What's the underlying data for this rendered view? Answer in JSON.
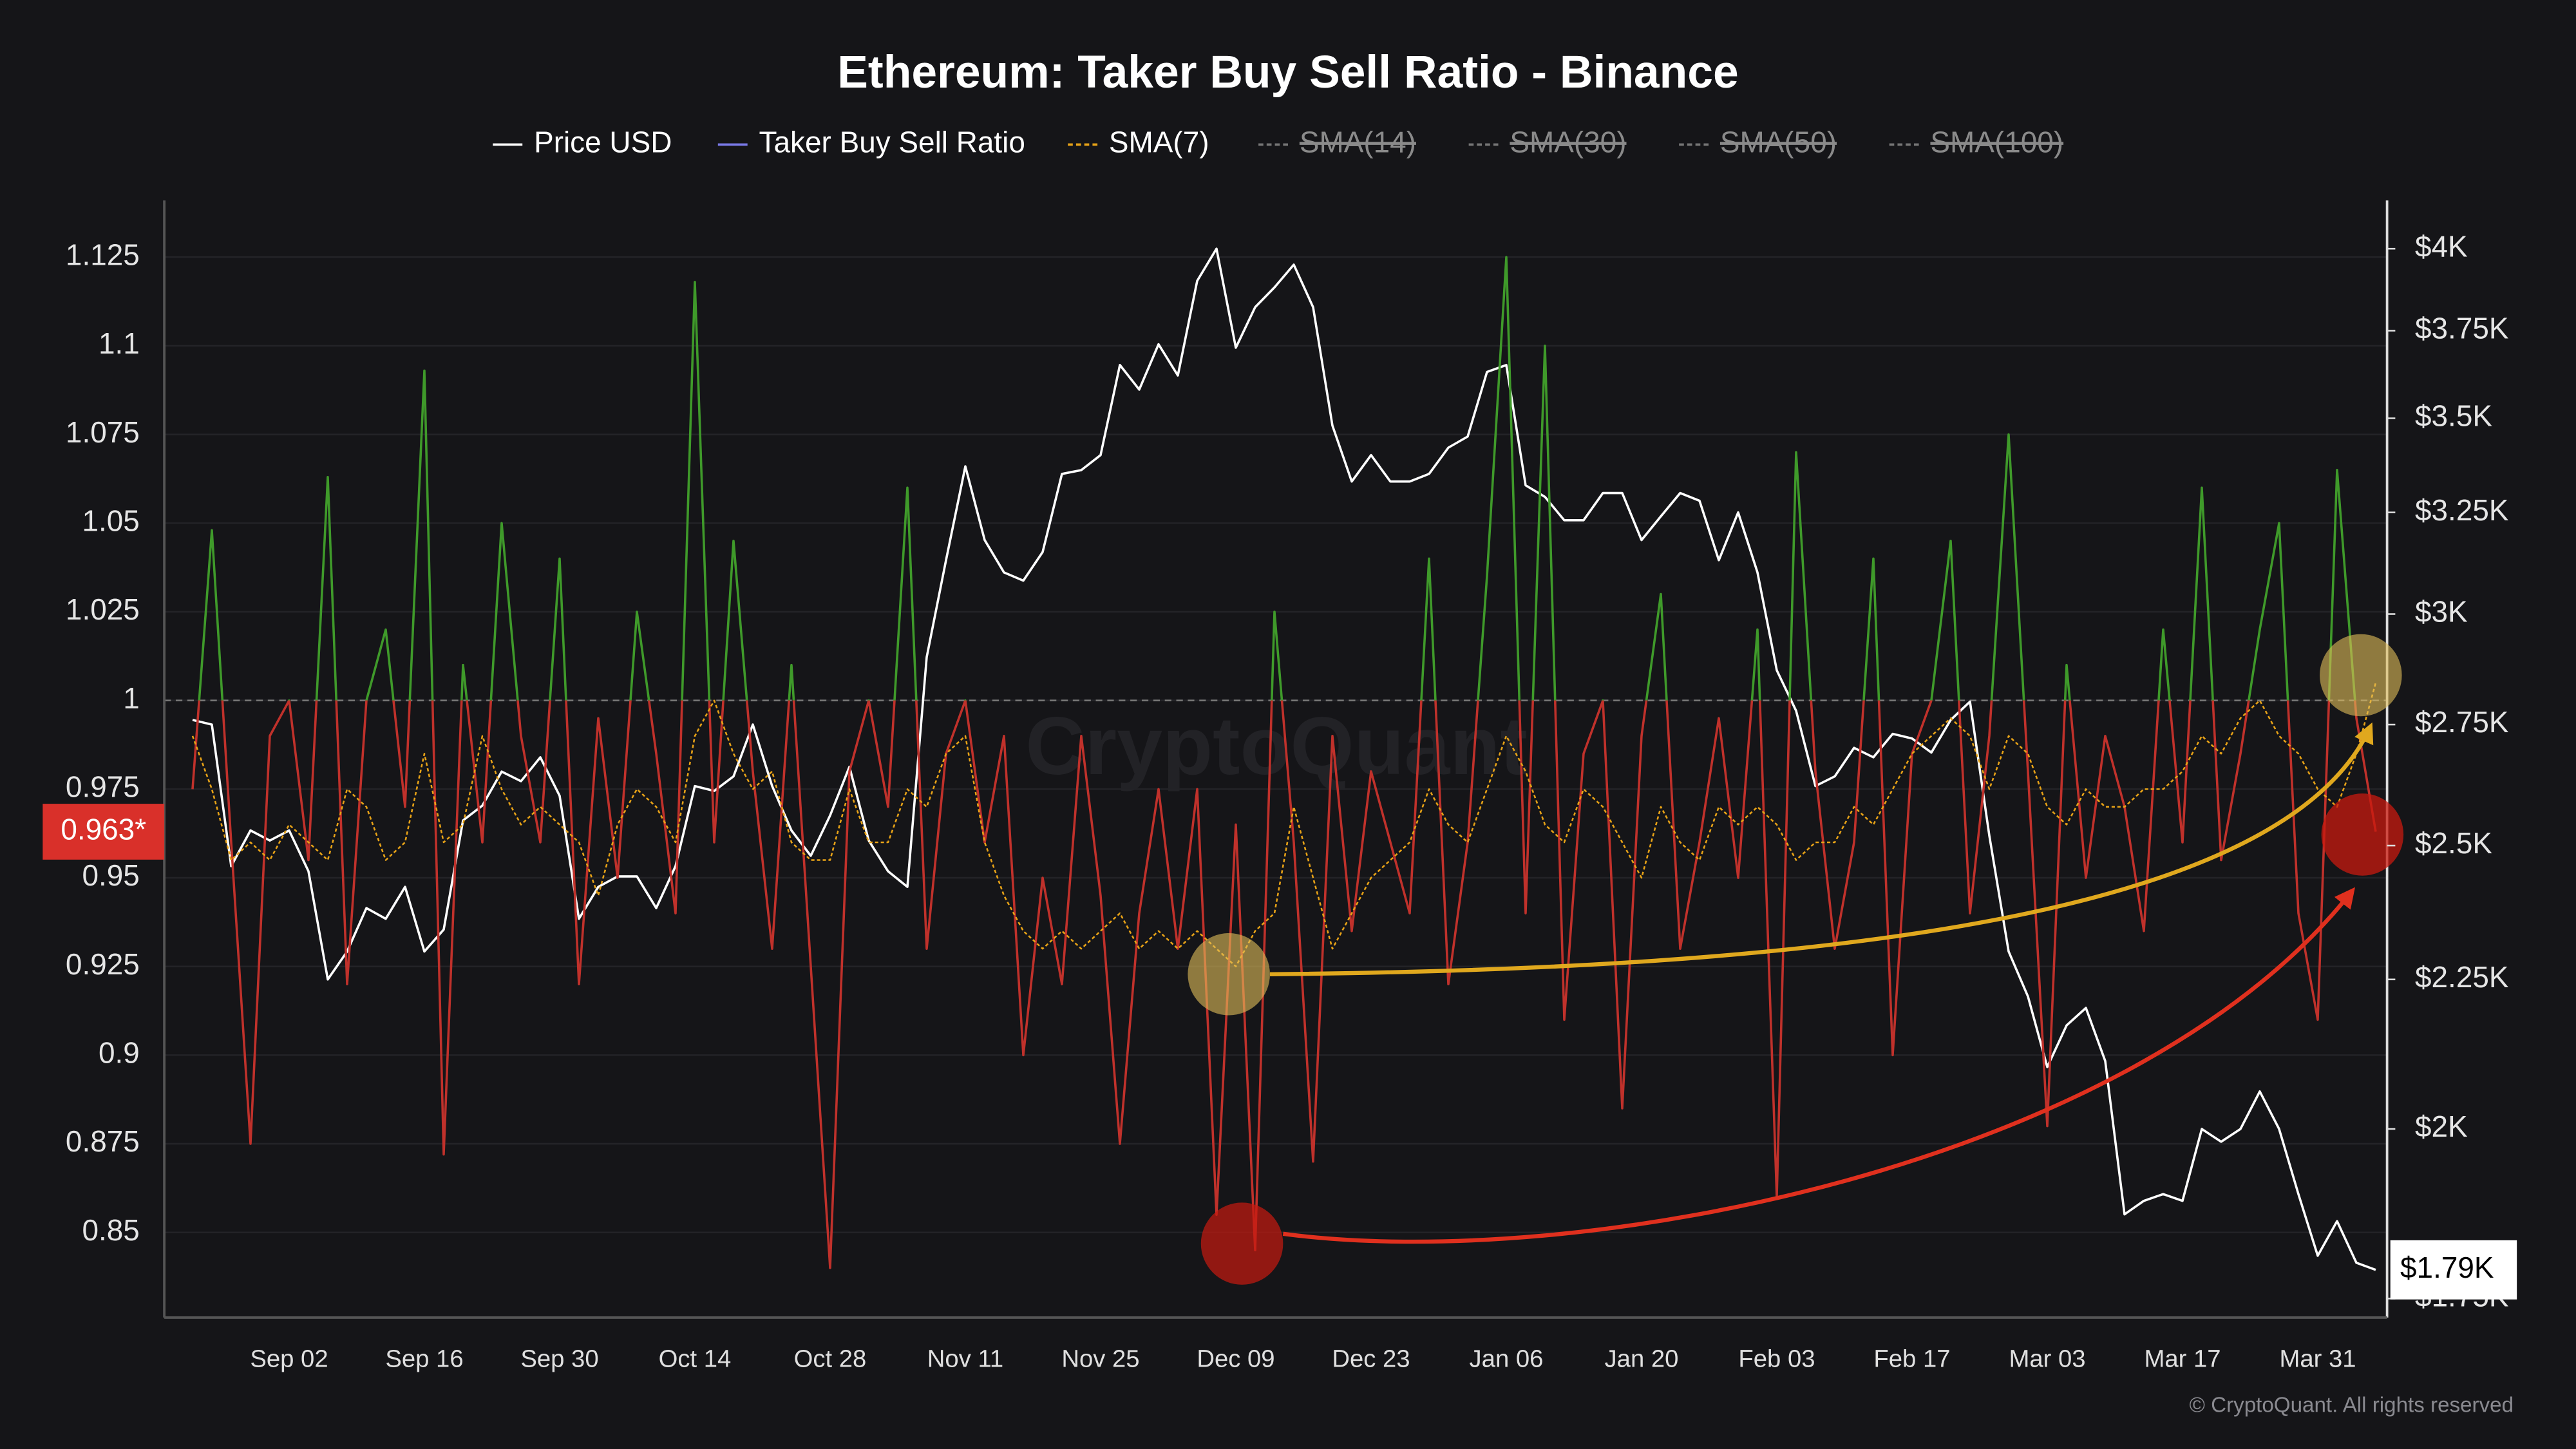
{
  "chart_data": {
    "type": "line",
    "title": "Ethereum: Taker Buy Sell Ratio - Binance",
    "watermark": "CryptoQuant",
    "copyright": "© CryptoQuant. All rights reserved",
    "categories": [
      null,
      null,
      null,
      null,
      null,
      "Sep 02",
      null,
      null,
      null,
      null,
      null,
      null,
      "Sep 16",
      null,
      null,
      null,
      null,
      null,
      null,
      "Sep 30",
      null,
      null,
      null,
      null,
      null,
      null,
      "Oct 14",
      null,
      null,
      null,
      null,
      null,
      null,
      "Oct 28",
      null,
      null,
      null,
      null,
      null,
      null,
      "Nov 11",
      null,
      null,
      null,
      null,
      null,
      null,
      "Nov 25",
      null,
      null,
      null,
      null,
      null,
      null,
      "Dec 09",
      null,
      null,
      null,
      null,
      null,
      null,
      "Dec 23",
      null,
      null,
      null,
      null,
      null,
      null,
      "Jan 06",
      null,
      null,
      null,
      null,
      null,
      null,
      "Jan 20",
      null,
      null,
      null,
      null,
      null,
      null,
      "Feb 03",
      null,
      null,
      null,
      null,
      null,
      null,
      "Feb 17",
      null,
      null,
      null,
      null,
      null,
      null,
      "Mar 03",
      null,
      null,
      null,
      null,
      null,
      null,
      "Mar 17",
      null,
      null,
      null,
      null,
      null,
      null,
      "Mar 31",
      null,
      null,
      null
    ],
    "series": [
      {
        "name": "Price USD",
        "color": "#ffffff",
        "axis": "y2",
        "values": [
          2760,
          2750,
          2460,
          2530,
          2510,
          2530,
          2450,
          2250,
          2300,
          2380,
          2360,
          2420,
          2300,
          2340,
          2550,
          2580,
          2650,
          2630,
          2680,
          2600,
          2360,
          2420,
          2440,
          2440,
          2380,
          2460,
          2620,
          2610,
          2640,
          2750,
          2620,
          2530,
          2480,
          2560,
          2660,
          2510,
          2450,
          2420,
          2900,
          3130,
          3370,
          3180,
          3100,
          3080,
          3150,
          3350,
          3360,
          3400,
          3650,
          3580,
          3710,
          3620,
          3900,
          4000,
          3700,
          3820,
          3880,
          3950,
          3820,
          3480,
          3330,
          3400,
          3330,
          3330,
          3350,
          3420,
          3450,
          3630,
          3650,
          3320,
          3290,
          3230,
          3230,
          3300,
          3300,
          3180,
          3240,
          3300,
          3280,
          3130,
          3250,
          3100,
          2870,
          2780,
          2620,
          2640,
          2700,
          2680,
          2730,
          2720,
          2690,
          2760,
          2800,
          2520,
          2300,
          2220,
          2100,
          2170,
          2200,
          2110,
          1870,
          1890,
          1900,
          1890,
          2000,
          1980,
          2000,
          2060,
          2000,
          1900,
          1810,
          1860,
          1800,
          1790
        ]
      },
      {
        "name": "Taker Buy Sell Ratio",
        "color": "#7b7bea",
        "above_color": "#3f9a2a",
        "below_color": "#c0312b",
        "values": [
          0.975,
          1.048,
          0.96,
          0.875,
          0.99,
          1.0,
          0.955,
          1.063,
          0.92,
          1.0,
          1.02,
          0.97,
          1.093,
          0.872,
          1.01,
          0.96,
          1.05,
          0.99,
          0.96,
          1.04,
          0.92,
          0.995,
          0.95,
          1.025,
          0.985,
          0.94,
          1.118,
          0.96,
          1.045,
          0.98,
          0.93,
          1.01,
          0.925,
          0.84,
          0.98,
          1.0,
          0.97,
          1.06,
          0.93,
          0.985,
          1.0,
          0.96,
          0.99,
          0.9,
          0.95,
          0.92,
          0.99,
          0.945,
          0.875,
          0.94,
          0.975,
          0.93,
          0.975,
          0.855,
          0.965,
          0.845,
          1.025,
          0.96,
          0.87,
          0.99,
          0.935,
          0.98,
          0.96,
          0.94,
          1.04,
          0.92,
          0.96,
          1.035,
          1.125,
          0.94,
          1.1,
          0.91,
          0.985,
          1.0,
          0.885,
          0.99,
          1.03,
          0.93,
          0.96,
          0.995,
          0.95,
          1.02,
          0.86,
          1.07,
          0.98,
          0.93,
          0.96,
          1.04,
          0.9,
          0.985,
          1.0,
          1.045,
          0.94,
          0.99,
          1.075,
          0.98,
          0.88,
          1.01,
          0.95,
          0.99,
          0.97,
          0.935,
          1.02,
          0.96,
          1.06,
          0.955,
          0.985,
          1.02,
          1.05,
          0.94,
          0.91,
          1.065,
          0.995,
          0.963
        ]
      },
      {
        "name": "SMA(7)",
        "color": "#e8a317",
        "dashed": true,
        "values": [
          0.99,
          0.975,
          0.955,
          0.96,
          0.955,
          0.965,
          0.96,
          0.955,
          0.975,
          0.97,
          0.955,
          0.96,
          0.985,
          0.96,
          0.965,
          0.99,
          0.975,
          0.965,
          0.97,
          0.965,
          0.96,
          0.945,
          0.965,
          0.975,
          0.97,
          0.96,
          0.99,
          1.0,
          0.985,
          0.975,
          0.98,
          0.96,
          0.955,
          0.955,
          0.975,
          0.96,
          0.96,
          0.975,
          0.97,
          0.985,
          0.99,
          0.96,
          0.945,
          0.935,
          0.93,
          0.935,
          0.93,
          0.935,
          0.94,
          0.93,
          0.935,
          0.93,
          0.935,
          0.93,
          0.925,
          0.935,
          0.94,
          0.97,
          0.95,
          0.93,
          0.94,
          0.95,
          0.955,
          0.96,
          0.975,
          0.965,
          0.96,
          0.975,
          0.99,
          0.98,
          0.965,
          0.96,
          0.975,
          0.97,
          0.96,
          0.95,
          0.97,
          0.96,
          0.955,
          0.97,
          0.965,
          0.97,
          0.965,
          0.955,
          0.96,
          0.96,
          0.97,
          0.965,
          0.975,
          0.985,
          0.99,
          0.995,
          0.99,
          0.975,
          0.99,
          0.985,
          0.97,
          0.965,
          0.975,
          0.97,
          0.97,
          0.975,
          0.975,
          0.98,
          0.99,
          0.985,
          0.995,
          1.0,
          0.99,
          0.985,
          0.975,
          0.97,
          0.985,
          1.005
        ]
      },
      {
        "name": "SMA(14)",
        "color": "#888888",
        "dashed": true,
        "hidden": true
      },
      {
        "name": "SMA(30)",
        "color": "#888888",
        "dashed": true,
        "hidden": true
      },
      {
        "name": "SMA(50)",
        "color": "#888888",
        "dashed": true,
        "hidden": true
      },
      {
        "name": "SMA(100)",
        "color": "#888888",
        "dashed": true,
        "hidden": true
      }
    ],
    "reference_line": 1,
    "ylim": [
      0.826,
      1.141
    ],
    "yticks": [
      0.85,
      0.875,
      0.9,
      0.925,
      0.95,
      0.975,
      1,
      1.025,
      1.05,
      1.075,
      1.1,
      1.125
    ],
    "y2lim": [
      1724,
      4155
    ],
    "y2log": true,
    "y2ticks": [
      {
        "value": 1750,
        "label": "$1.75K"
      },
      {
        "value": 2000,
        "label": "$2K"
      },
      {
        "value": 2250,
        "label": "$2.25K"
      },
      {
        "value": 2500,
        "label": "$2.5K"
      },
      {
        "value": 2750,
        "label": "$2.75K"
      },
      {
        "value": 3000,
        "label": "$3K"
      },
      {
        "value": 3250,
        "label": "$3.25K"
      },
      {
        "value": 3500,
        "label": "$3.5K"
      },
      {
        "value": 3750,
        "label": "$3.75K"
      },
      {
        "value": 4000,
        "label": "$4K"
      }
    ],
    "grid": true,
    "last_ratio": {
      "value": 0.963,
      "label": "0.963*"
    },
    "last_price": {
      "value": 1790,
      "label": "$1.79K"
    }
  }
}
